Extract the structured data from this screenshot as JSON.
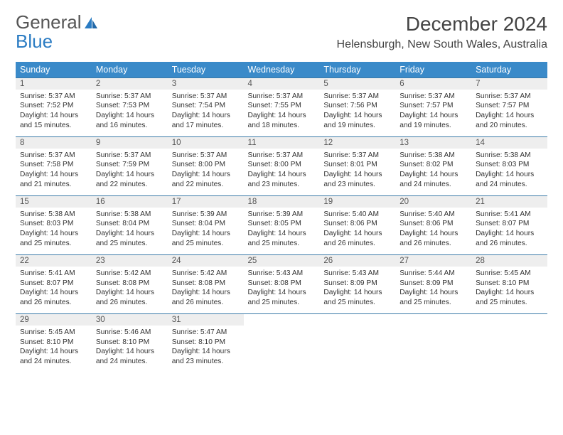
{
  "brand": {
    "line1": "General",
    "line2": "Blue"
  },
  "title": "December 2024",
  "location": "Helensburgh, New South Wales, Australia",
  "colors": {
    "header_bg": "#3a8ac9",
    "header_text": "#ffffff",
    "row_border": "#3a7aa8",
    "daynum_bg": "#eeeeee",
    "brand_accent": "#2b7cc3"
  },
  "day_names": [
    "Sunday",
    "Monday",
    "Tuesday",
    "Wednesday",
    "Thursday",
    "Friday",
    "Saturday"
  ],
  "days": [
    {
      "n": "1",
      "sunrise": "5:37 AM",
      "sunset": "7:52 PM",
      "day_h": "14",
      "day_m": "15"
    },
    {
      "n": "2",
      "sunrise": "5:37 AM",
      "sunset": "7:53 PM",
      "day_h": "14",
      "day_m": "16"
    },
    {
      "n": "3",
      "sunrise": "5:37 AM",
      "sunset": "7:54 PM",
      "day_h": "14",
      "day_m": "17"
    },
    {
      "n": "4",
      "sunrise": "5:37 AM",
      "sunset": "7:55 PM",
      "day_h": "14",
      "day_m": "18"
    },
    {
      "n": "5",
      "sunrise": "5:37 AM",
      "sunset": "7:56 PM",
      "day_h": "14",
      "day_m": "19"
    },
    {
      "n": "6",
      "sunrise": "5:37 AM",
      "sunset": "7:57 PM",
      "day_h": "14",
      "day_m": "19"
    },
    {
      "n": "7",
      "sunrise": "5:37 AM",
      "sunset": "7:57 PM",
      "day_h": "14",
      "day_m": "20"
    },
    {
      "n": "8",
      "sunrise": "5:37 AM",
      "sunset": "7:58 PM",
      "day_h": "14",
      "day_m": "21"
    },
    {
      "n": "9",
      "sunrise": "5:37 AM",
      "sunset": "7:59 PM",
      "day_h": "14",
      "day_m": "22"
    },
    {
      "n": "10",
      "sunrise": "5:37 AM",
      "sunset": "8:00 PM",
      "day_h": "14",
      "day_m": "22"
    },
    {
      "n": "11",
      "sunrise": "5:37 AM",
      "sunset": "8:00 PM",
      "day_h": "14",
      "day_m": "23"
    },
    {
      "n": "12",
      "sunrise": "5:37 AM",
      "sunset": "8:01 PM",
      "day_h": "14",
      "day_m": "23"
    },
    {
      "n": "13",
      "sunrise": "5:38 AM",
      "sunset": "8:02 PM",
      "day_h": "14",
      "day_m": "24"
    },
    {
      "n": "14",
      "sunrise": "5:38 AM",
      "sunset": "8:03 PM",
      "day_h": "14",
      "day_m": "24"
    },
    {
      "n": "15",
      "sunrise": "5:38 AM",
      "sunset": "8:03 PM",
      "day_h": "14",
      "day_m": "25"
    },
    {
      "n": "16",
      "sunrise": "5:38 AM",
      "sunset": "8:04 PM",
      "day_h": "14",
      "day_m": "25"
    },
    {
      "n": "17",
      "sunrise": "5:39 AM",
      "sunset": "8:04 PM",
      "day_h": "14",
      "day_m": "25"
    },
    {
      "n": "18",
      "sunrise": "5:39 AM",
      "sunset": "8:05 PM",
      "day_h": "14",
      "day_m": "25"
    },
    {
      "n": "19",
      "sunrise": "5:40 AM",
      "sunset": "8:06 PM",
      "day_h": "14",
      "day_m": "26"
    },
    {
      "n": "20",
      "sunrise": "5:40 AM",
      "sunset": "8:06 PM",
      "day_h": "14",
      "day_m": "26"
    },
    {
      "n": "21",
      "sunrise": "5:41 AM",
      "sunset": "8:07 PM",
      "day_h": "14",
      "day_m": "26"
    },
    {
      "n": "22",
      "sunrise": "5:41 AM",
      "sunset": "8:07 PM",
      "day_h": "14",
      "day_m": "26"
    },
    {
      "n": "23",
      "sunrise": "5:42 AM",
      "sunset": "8:08 PM",
      "day_h": "14",
      "day_m": "26"
    },
    {
      "n": "24",
      "sunrise": "5:42 AM",
      "sunset": "8:08 PM",
      "day_h": "14",
      "day_m": "26"
    },
    {
      "n": "25",
      "sunrise": "5:43 AM",
      "sunset": "8:08 PM",
      "day_h": "14",
      "day_m": "25"
    },
    {
      "n": "26",
      "sunrise": "5:43 AM",
      "sunset": "8:09 PM",
      "day_h": "14",
      "day_m": "25"
    },
    {
      "n": "27",
      "sunrise": "5:44 AM",
      "sunset": "8:09 PM",
      "day_h": "14",
      "day_m": "25"
    },
    {
      "n": "28",
      "sunrise": "5:45 AM",
      "sunset": "8:10 PM",
      "day_h": "14",
      "day_m": "25"
    },
    {
      "n": "29",
      "sunrise": "5:45 AM",
      "sunset": "8:10 PM",
      "day_h": "14",
      "day_m": "24"
    },
    {
      "n": "30",
      "sunrise": "5:46 AM",
      "sunset": "8:10 PM",
      "day_h": "14",
      "day_m": "24"
    },
    {
      "n": "31",
      "sunrise": "5:47 AM",
      "sunset": "8:10 PM",
      "day_h": "14",
      "day_m": "23"
    }
  ],
  "labels": {
    "sunrise": "Sunrise: ",
    "sunset": "Sunset: ",
    "daylight1": "Daylight: ",
    "hours_and": " hours and ",
    "minutes": " minutes."
  }
}
